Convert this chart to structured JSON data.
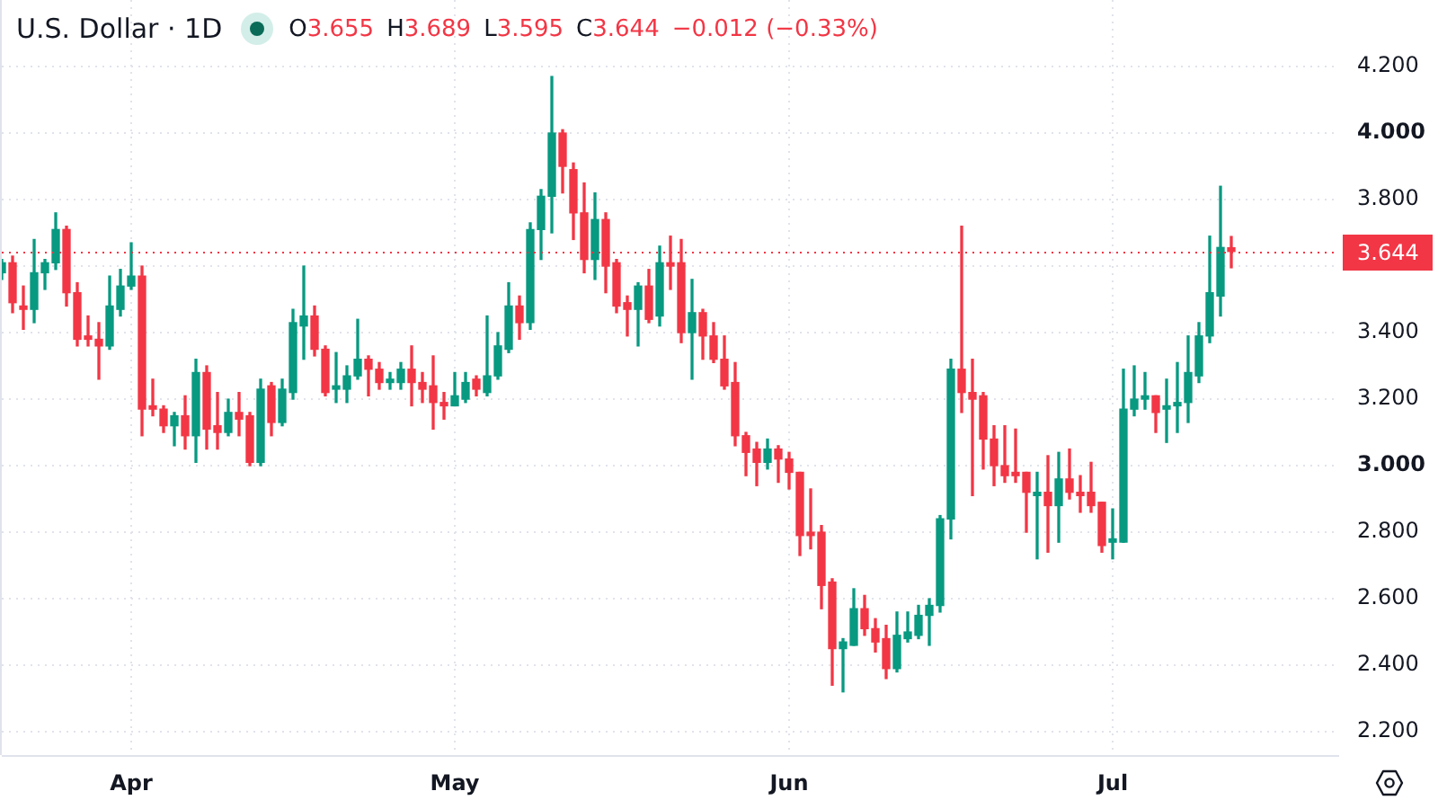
{
  "chart_data": {
    "type": "candlestick",
    "title": "U.S. Dollar · 1D",
    "x": [
      "--03-20",
      "--03-21",
      "--03-22",
      "--03-23",
      "--03-24",
      "--03-25",
      "--03-26",
      "--03-27",
      "--03-28",
      "--03-29",
      "--03-30",
      "--03-31",
      "--04-01",
      "--04-02",
      "--04-03",
      "--04-04",
      "--04-05",
      "--04-06",
      "--04-07",
      "--04-08",
      "--04-09",
      "--04-10",
      "--04-11",
      "--04-12",
      "--04-13",
      "--04-14",
      "--04-15",
      "--04-16",
      "--04-17",
      "--04-18",
      "--04-19",
      "--04-20",
      "--04-21",
      "--04-22",
      "--04-23",
      "--04-24",
      "--04-25",
      "--04-26",
      "--04-27",
      "--04-28",
      "--04-29",
      "--04-30",
      "--05-01",
      "--05-02",
      "--05-03",
      "--05-04",
      "--05-05",
      "--05-06",
      "--05-07",
      "--05-08",
      "--05-09",
      "--05-10",
      "--05-11",
      "--05-12",
      "--05-13",
      "--05-14",
      "--05-15",
      "--05-16",
      "--05-17",
      "--05-18",
      "--05-19",
      "--05-20",
      "--05-21",
      "--05-22",
      "--05-23",
      "--05-24",
      "--05-25",
      "--05-26",
      "--05-27",
      "--05-28",
      "--05-29",
      "--05-30",
      "--05-31",
      "--06-01",
      "--06-02",
      "--06-03",
      "--06-04",
      "--06-05",
      "--06-06",
      "--06-07",
      "--06-08",
      "--06-09",
      "--06-10",
      "--06-11",
      "--06-12",
      "--06-13",
      "--06-14",
      "--06-15",
      "--06-16",
      "--06-17",
      "--06-18",
      "--06-19",
      "--06-20",
      "--06-21",
      "--06-22",
      "--06-23",
      "--06-24",
      "--06-25",
      "--06-26",
      "--06-27",
      "--06-28",
      "--06-29",
      "--06-30",
      "--07-01",
      "--07-02",
      "--07-03",
      "--07-04",
      "--07-05",
      "--07-06",
      "--07-07",
      "--07-08",
      "--07-09",
      "--07-10",
      "--07-11",
      "--07-12"
    ],
    "ohlc": [
      [
        3.58,
        3.62,
        3.56,
        3.61
      ],
      [
        3.61,
        3.63,
        3.46,
        3.49
      ],
      [
        3.48,
        3.54,
        3.41,
        3.47
      ],
      [
        3.47,
        3.68,
        3.43,
        3.58
      ],
      [
        3.58,
        3.62,
        3.53,
        3.61
      ],
      [
        3.61,
        3.76,
        3.59,
        3.71
      ],
      [
        3.71,
        3.72,
        3.48,
        3.52
      ],
      [
        3.52,
        3.55,
        3.36,
        3.38
      ],
      [
        3.39,
        3.45,
        3.36,
        3.38
      ],
      [
        3.38,
        3.43,
        3.26,
        3.36
      ],
      [
        3.36,
        3.57,
        3.35,
        3.48
      ],
      [
        3.47,
        3.59,
        3.45,
        3.54
      ],
      [
        3.54,
        3.67,
        3.53,
        3.57
      ],
      [
        3.57,
        3.6,
        3.09,
        3.17
      ],
      [
        3.18,
        3.26,
        3.15,
        3.17
      ],
      [
        3.17,
        3.18,
        3.1,
        3.12
      ],
      [
        3.12,
        3.16,
        3.06,
        3.15
      ],
      [
        3.15,
        3.21,
        3.05,
        3.09
      ],
      [
        3.09,
        3.32,
        3.01,
        3.28
      ],
      [
        3.28,
        3.3,
        3.05,
        3.11
      ],
      [
        3.12,
        3.22,
        3.05,
        3.1
      ],
      [
        3.1,
        3.2,
        3.09,
        3.16
      ],
      [
        3.16,
        3.22,
        3.09,
        3.14
      ],
      [
        3.15,
        3.16,
        3.0,
        3.01
      ],
      [
        3.01,
        3.26,
        3.0,
        3.23
      ],
      [
        3.24,
        3.25,
        3.09,
        3.13
      ],
      [
        3.13,
        3.26,
        3.12,
        3.23
      ],
      [
        3.22,
        3.47,
        3.2,
        3.43
      ],
      [
        3.42,
        3.6,
        3.32,
        3.45
      ],
      [
        3.45,
        3.48,
        3.33,
        3.35
      ],
      [
        3.35,
        3.36,
        3.21,
        3.22
      ],
      [
        3.23,
        3.34,
        3.19,
        3.24
      ],
      [
        3.23,
        3.3,
        3.19,
        3.27
      ],
      [
        3.27,
        3.44,
        3.26,
        3.32
      ],
      [
        3.32,
        3.33,
        3.21,
        3.29
      ],
      [
        3.29,
        3.31,
        3.23,
        3.25
      ],
      [
        3.25,
        3.28,
        3.23,
        3.26
      ],
      [
        3.25,
        3.31,
        3.23,
        3.29
      ],
      [
        3.29,
        3.36,
        3.18,
        3.25
      ],
      [
        3.25,
        3.28,
        3.19,
        3.23
      ],
      [
        3.24,
        3.33,
        3.11,
        3.19
      ],
      [
        3.19,
        3.22,
        3.14,
        3.18
      ],
      [
        3.18,
        3.28,
        3.18,
        3.21
      ],
      [
        3.2,
        3.28,
        3.19,
        3.25
      ],
      [
        3.26,
        3.27,
        3.21,
        3.23
      ],
      [
        3.22,
        3.45,
        3.21,
        3.27
      ],
      [
        3.27,
        3.4,
        3.26,
        3.36
      ],
      [
        3.35,
        3.55,
        3.34,
        3.48
      ],
      [
        3.48,
        3.51,
        3.38,
        3.43
      ],
      [
        3.43,
        3.73,
        3.41,
        3.71
      ],
      [
        3.71,
        3.83,
        3.62,
        3.81
      ],
      [
        3.81,
        4.17,
        3.7,
        4.0
      ],
      [
        4.0,
        4.01,
        3.82,
        3.9
      ],
      [
        3.89,
        3.91,
        3.68,
        3.76
      ],
      [
        3.76,
        3.85,
        3.58,
        3.62
      ],
      [
        3.62,
        3.82,
        3.56,
        3.74
      ],
      [
        3.74,
        3.76,
        3.52,
        3.6
      ],
      [
        3.61,
        3.62,
        3.46,
        3.48
      ],
      [
        3.49,
        3.51,
        3.39,
        3.47
      ],
      [
        3.47,
        3.55,
        3.36,
        3.54
      ],
      [
        3.54,
        3.59,
        3.43,
        3.44
      ],
      [
        3.45,
        3.66,
        3.42,
        3.61
      ],
      [
        3.61,
        3.69,
        3.53,
        3.6
      ],
      [
        3.61,
        3.68,
        3.37,
        3.4
      ],
      [
        3.4,
        3.56,
        3.26,
        3.46
      ],
      [
        3.46,
        3.47,
        3.32,
        3.39
      ],
      [
        3.39,
        3.43,
        3.31,
        3.32
      ],
      [
        3.32,
        3.39,
        3.23,
        3.24
      ],
      [
        3.25,
        3.31,
        3.06,
        3.09
      ],
      [
        3.09,
        3.1,
        2.97,
        3.04
      ],
      [
        3.05,
        3.07,
        2.94,
        3.01
      ],
      [
        3.01,
        3.08,
        2.99,
        3.05
      ],
      [
        3.05,
        3.06,
        2.95,
        3.02
      ],
      [
        3.02,
        3.04,
        2.93,
        2.98
      ],
      [
        2.98,
        2.98,
        2.73,
        2.79
      ],
      [
        2.8,
        2.93,
        2.75,
        2.79
      ],
      [
        2.8,
        2.82,
        2.57,
        2.64
      ],
      [
        2.65,
        2.66,
        2.34,
        2.45
      ],
      [
        2.45,
        2.48,
        2.32,
        2.47
      ],
      [
        2.46,
        2.63,
        2.46,
        2.57
      ],
      [
        2.57,
        2.61,
        2.49,
        2.51
      ],
      [
        2.51,
        2.54,
        2.44,
        2.47
      ],
      [
        2.48,
        2.52,
        2.36,
        2.39
      ],
      [
        2.39,
        2.56,
        2.38,
        2.49
      ],
      [
        2.48,
        2.56,
        2.47,
        2.5
      ],
      [
        2.49,
        2.58,
        2.48,
        2.55
      ],
      [
        2.55,
        2.6,
        2.46,
        2.58
      ],
      [
        2.58,
        2.85,
        2.56,
        2.84
      ],
      [
        2.84,
        3.32,
        2.78,
        3.29
      ],
      [
        3.29,
        3.72,
        3.16,
        3.22
      ],
      [
        3.22,
        3.32,
        2.91,
        3.2
      ],
      [
        3.21,
        3.22,
        2.99,
        3.08
      ],
      [
        3.08,
        3.12,
        2.94,
        3.0
      ],
      [
        3.0,
        3.12,
        2.95,
        2.97
      ],
      [
        2.98,
        3.11,
        2.95,
        2.97
      ],
      [
        2.98,
        2.98,
        2.8,
        2.92
      ],
      [
        2.91,
        2.98,
        2.72,
        2.92
      ],
      [
        2.92,
        3.03,
        2.74,
        2.88
      ],
      [
        2.88,
        3.04,
        2.77,
        2.96
      ],
      [
        2.96,
        3.05,
        2.9,
        2.92
      ],
      [
        2.92,
        2.97,
        2.86,
        2.91
      ],
      [
        2.92,
        3.01,
        2.86,
        2.88
      ],
      [
        2.89,
        2.89,
        2.74,
        2.76
      ],
      [
        2.77,
        2.87,
        2.72,
        2.78
      ],
      [
        2.77,
        3.29,
        2.77,
        3.17
      ],
      [
        3.17,
        3.3,
        3.15,
        3.2
      ],
      [
        3.2,
        3.28,
        3.17,
        3.21
      ],
      [
        3.21,
        3.21,
        3.1,
        3.16
      ],
      [
        3.17,
        3.26,
        3.07,
        3.18
      ],
      [
        3.18,
        3.31,
        3.1,
        3.19
      ],
      [
        3.19,
        3.39,
        3.13,
        3.28
      ],
      [
        3.27,
        3.43,
        3.25,
        3.39
      ],
      [
        3.39,
        3.69,
        3.37,
        3.52
      ],
      [
        3.51,
        3.84,
        3.45,
        3.656
      ],
      [
        3.655,
        3.689,
        3.595,
        3.644
      ]
    ],
    "colors": [
      "#089981",
      "#f23645",
      "#f23645",
      "#089981",
      "#089981",
      "#089981",
      "#f23645",
      "#f23645",
      "#f23645",
      "#f23645",
      "#089981",
      "#089981",
      "#089981",
      "#f23645",
      "#f23645",
      "#f23645",
      "#089981",
      "#f23645",
      "#089981",
      "#f23645",
      "#f23645",
      "#089981",
      "#f23645",
      "#f23645",
      "#089981",
      "#f23645",
      "#089981",
      "#089981",
      "#089981",
      "#f23645",
      "#f23645",
      "#089981",
      "#089981",
      "#089981",
      "#f23645",
      "#f23645",
      "#089981",
      "#089981",
      "#f23645",
      "#f23645",
      "#f23645",
      "#f23645",
      "#089981",
      "#089981",
      "#f23645",
      "#089981",
      "#089981",
      "#089981",
      "#f23645",
      "#089981",
      "#089981",
      "#089981",
      "#f23645",
      "#f23645",
      "#f23645",
      "#089981",
      "#f23645",
      "#f23645",
      "#f23645",
      "#089981",
      "#f23645",
      "#089981",
      "#f23645",
      "#f23645",
      "#089981",
      "#f23645",
      "#f23645",
      "#f23645",
      "#f23645",
      "#f23645",
      "#f23645",
      "#089981",
      "#f23645",
      "#f23645",
      "#f23645",
      "#f23645",
      "#f23645",
      "#f23645",
      "#089981",
      "#089981",
      "#f23645",
      "#f23645",
      "#f23645",
      "#089981",
      "#089981",
      "#089981",
      "#089981",
      "#089981",
      "#089981",
      "#f23645",
      "#f23645",
      "#f23645",
      "#f23645",
      "#f23645",
      "#f23645",
      "#f23645",
      "#089981",
      "#f23645",
      "#089981",
      "#f23645",
      "#f23645",
      "#f23645",
      "#f23645",
      "#089981",
      "#089981",
      "#089981",
      "#089981",
      "#f23645",
      "#089981",
      "#089981",
      "#089981",
      "#089981",
      "#089981",
      "#089981",
      "#f23645"
    ],
    "xlim": [
      "--03-20",
      "--07-22"
    ],
    "xticks": [
      {
        "value": "--04-01",
        "label": "Apr"
      },
      {
        "value": "--05-01",
        "label": "May"
      },
      {
        "value": "--06-01",
        "label": "Jun"
      },
      {
        "value": "--07-01",
        "label": "Jul"
      }
    ],
    "ylim": [
      2.13,
      4.4
    ],
    "yticks": [
      {
        "value": 2.2,
        "label": "2.200"
      },
      {
        "value": 2.4,
        "label": "2.400"
      },
      {
        "value": 2.6,
        "label": "2.600"
      },
      {
        "value": 2.8,
        "label": "2.800"
      },
      {
        "value": 3.0,
        "label": "3.000"
      },
      {
        "value": 3.2,
        "label": "3.200"
      },
      {
        "value": 3.4,
        "label": "3.400"
      },
      {
        "value": 3.6,
        "label": null
      },
      {
        "value": 3.8,
        "label": "3.800"
      },
      {
        "value": 4.0,
        "label": "4.000"
      },
      {
        "value": 4.2,
        "label": "4.200"
      }
    ],
    "grid": true,
    "ref_lines": [
      {
        "axis": "y",
        "value": 3.644,
        "label": "3.644",
        "color": "#f23645",
        "line_style": "dotted"
      }
    ],
    "annotations": [
      "O3.655",
      "H3.689",
      "L3.595",
      "C3.644",
      "−0.012 (−0.33%)"
    ]
  }
}
